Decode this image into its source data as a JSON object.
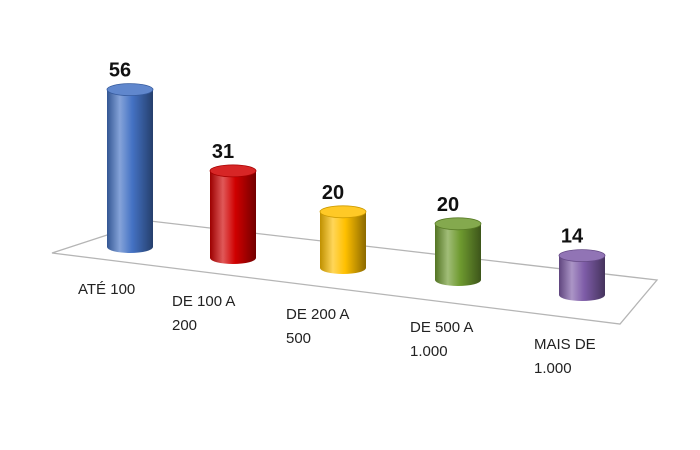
{
  "chart_data": {
    "type": "bar",
    "style": "3d-cylinder",
    "categories": [
      [
        "ATÉ 100"
      ],
      [
        "DE 100 A",
        "200"
      ],
      [
        "DE 200 A",
        "500"
      ],
      [
        "DE 500 A",
        "1.000"
      ],
      [
        "MAIS DE",
        "1.000"
      ]
    ],
    "values": [
      56,
      31,
      20,
      20,
      14
    ],
    "data_labels": [
      "56",
      "31",
      "20",
      "20",
      "14"
    ],
    "colors": [
      "#4472c4",
      "#d00000",
      "#ffc000",
      "#6e9a2f",
      "#7e5ca8"
    ],
    "title": "",
    "xlabel": "",
    "ylabel": "",
    "ylim": [
      0,
      60
    ],
    "grid": false,
    "legend": "none"
  }
}
